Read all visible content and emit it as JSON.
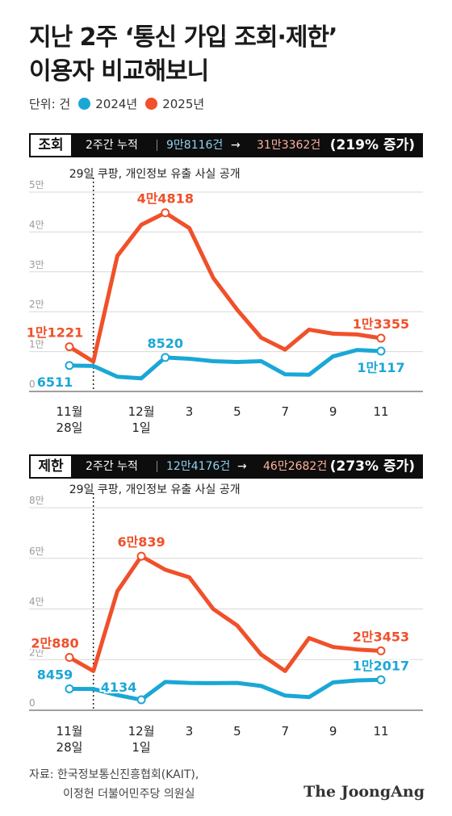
{
  "title": {
    "line1": "지난 2주 ‘통신 가입 조회·제한’",
    "line2": "이용자 비교해보니"
  },
  "legend": {
    "unit": "단위: 건",
    "series": [
      {
        "label": "2024년",
        "color": "#1aa7d6"
      },
      {
        "label": "2025년",
        "color": "#f0502a"
      }
    ]
  },
  "colors": {
    "y2024": "#1aa7d6",
    "y2025": "#f0502a"
  },
  "panels": [
    {
      "tag": "조회",
      "cumulative_label": "2주간 누적",
      "value_2024": "9만8116건",
      "value_2025": "31만3362건",
      "arrow": "→",
      "increase": "(219% 증가)"
    },
    {
      "tag": "제한",
      "cumulative_label": "2주간 누적",
      "value_2024": "12만4176건",
      "value_2025": "46만2682건",
      "arrow": "→",
      "increase": "(273% 증가)"
    }
  ],
  "chart_data": [
    {
      "type": "line",
      "name": "조회",
      "x": [
        "11월 28일",
        "29",
        "30",
        "12월 1일",
        "2",
        "3",
        "4",
        "5",
        "6",
        "7",
        "8",
        "9",
        "10",
        "11"
      ],
      "x_tick_labels": [
        {
          "index": 0,
          "line1": "11월",
          "line2": "28일"
        },
        {
          "index": 3,
          "line1": "12월",
          "line2": "1일"
        },
        {
          "index": 5,
          "line1": "3",
          "line2": ""
        },
        {
          "index": 7,
          "line1": "5",
          "line2": ""
        },
        {
          "index": 9,
          "line1": "7",
          "line2": ""
        },
        {
          "index": 11,
          "line1": "9",
          "line2": ""
        },
        {
          "index": 13,
          "line1": "11",
          "line2": ""
        }
      ],
      "y_ticks": [
        "0",
        "1만",
        "2만",
        "3만",
        "4만",
        "5만"
      ],
      "ylim": [
        0,
        50000
      ],
      "annotation": {
        "at_index": 1,
        "text": "29일 쿠팡, 개인정보 유출 사실 공개"
      },
      "series": [
        {
          "name": "2025년",
          "values": [
            11221,
            7500,
            34000,
            41800,
            44818,
            41000,
            28500,
            20500,
            13500,
            10500,
            15500,
            14500,
            14300,
            13355
          ]
        },
        {
          "name": "2024년",
          "values": [
            6511,
            6400,
            3700,
            3300,
            8520,
            8200,
            7600,
            7400,
            7600,
            4300,
            4200,
            8800,
            10400,
            10117
          ]
        }
      ],
      "labels": [
        {
          "series": 0,
          "index": 0,
          "text": "1만1221",
          "pos": "above"
        },
        {
          "series": 1,
          "index": 0,
          "text": "6511",
          "pos": "below"
        },
        {
          "series": 0,
          "index": 4,
          "text": "4만4818",
          "pos": "above"
        },
        {
          "series": 1,
          "index": 4,
          "text": "8520",
          "pos": "above"
        },
        {
          "series": 0,
          "index": 13,
          "text": "1만3355",
          "pos": "above"
        },
        {
          "series": 1,
          "index": 13,
          "text": "1만117",
          "pos": "below"
        }
      ]
    },
    {
      "type": "line",
      "name": "제한",
      "x": [
        "11월 28일",
        "29",
        "30",
        "12월 1일",
        "2",
        "3",
        "4",
        "5",
        "6",
        "7",
        "8",
        "9",
        "10",
        "11"
      ],
      "x_tick_labels": [
        {
          "index": 0,
          "line1": "11월",
          "line2": "28일"
        },
        {
          "index": 3,
          "line1": "12월",
          "line2": "1일"
        },
        {
          "index": 5,
          "line1": "3",
          "line2": ""
        },
        {
          "index": 7,
          "line1": "5",
          "line2": ""
        },
        {
          "index": 9,
          "line1": "7",
          "line2": ""
        },
        {
          "index": 11,
          "line1": "9",
          "line2": ""
        },
        {
          "index": 13,
          "line1": "11",
          "line2": ""
        }
      ],
      "y_ticks": [
        "0",
        "2만",
        "4만",
        "6만",
        "8만"
      ],
      "ylim": [
        0,
        80000
      ],
      "annotation": {
        "at_index": 1,
        "text": "29일 쿠팡, 개인정보 유출 사실 공개"
      },
      "series": [
        {
          "name": "2025년",
          "values": [
            20880,
            15500,
            47000,
            60839,
            55500,
            52500,
            40000,
            33500,
            22000,
            15500,
            28500,
            25000,
            24000,
            23453
          ]
        },
        {
          "name": "2024년",
          "values": [
            8459,
            8400,
            6000,
            4134,
            11200,
            10800,
            10700,
            10800,
            9600,
            5800,
            5200,
            11000,
            11800,
            12017
          ]
        }
      ],
      "labels": [
        {
          "series": 0,
          "index": 0,
          "text": "2만880",
          "pos": "above"
        },
        {
          "series": 1,
          "index": 0,
          "text": "8459",
          "pos": "above"
        },
        {
          "series": 0,
          "index": 3,
          "text": "6만839",
          "pos": "above"
        },
        {
          "series": 1,
          "index": 3,
          "text": "4134",
          "pos": "right"
        },
        {
          "series": 0,
          "index": 13,
          "text": "2만3453",
          "pos": "above"
        },
        {
          "series": 1,
          "index": 13,
          "text": "1만2017",
          "pos": "above"
        }
      ]
    }
  ],
  "source": {
    "line1": "자료: 한국정보통신진흥협회(KAIT),",
    "line2": "이정헌 더불어민주당 의원실"
  },
  "logo": "The JoongAng"
}
